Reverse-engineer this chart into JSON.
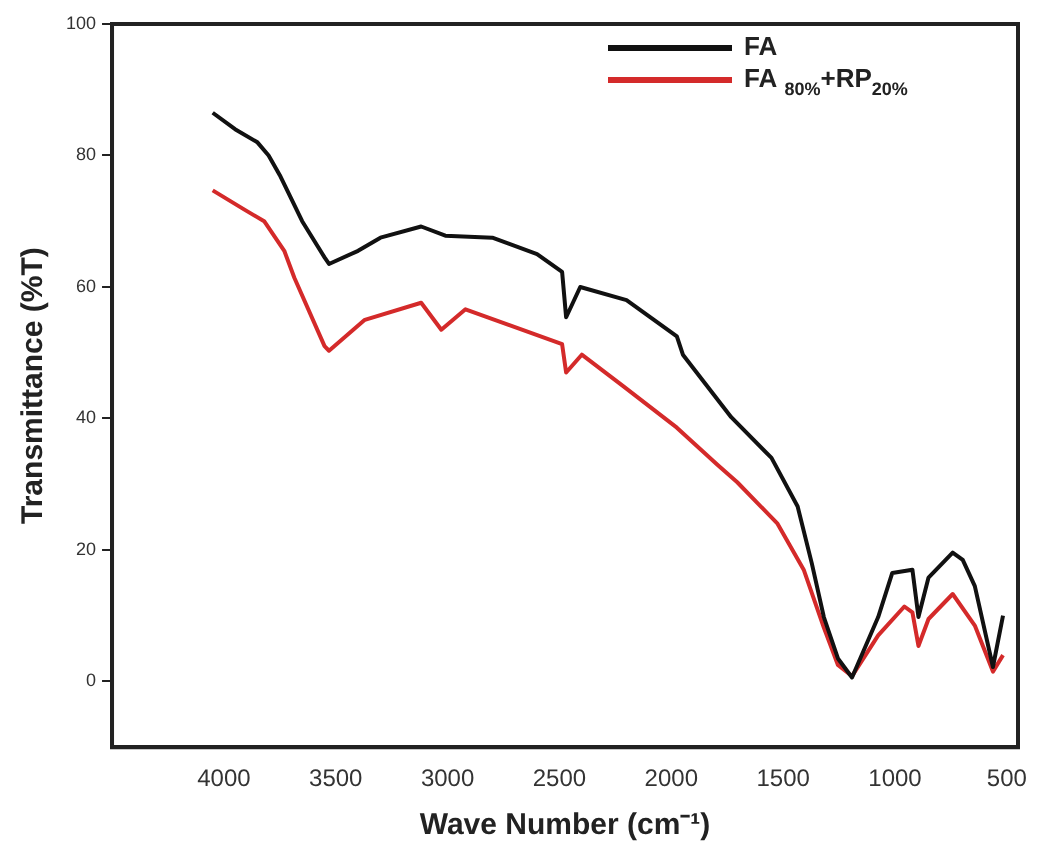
{
  "chart_data": {
    "type": "line",
    "xlabel": "Wave Number (cm⁻¹)",
    "ylabel": "Transmittance (%T)",
    "xlim": [
      4500,
      450
    ],
    "xticks": [
      4000,
      3500,
      3000,
      2500,
      2000,
      1500,
      1000,
      500
    ],
    "ylim": [
      -10,
      100
    ],
    "yticks": [
      0,
      20,
      40,
      60,
      80,
      100
    ],
    "grid": false,
    "legend": "top right",
    "marker": "none",
    "line_style": "solid",
    "series": [
      {
        "name": "FA",
        "color": "#111111",
        "x": [
          4050,
          3950,
          3850,
          3800,
          3750,
          3650,
          3550,
          3530,
          3400,
          3300,
          3118,
          3010,
          2800,
          2600,
          2488,
          2470,
          2407,
          2200,
          1975,
          1948,
          1732,
          1552,
          1435,
          1372,
          1318,
          1255,
          1192,
          1075,
          1012,
          922,
          895,
          850,
          742,
          697,
          643,
          562,
          517
        ],
        "values": [
          86.5,
          84,
          82,
          80,
          77,
          70,
          64.5,
          63.5,
          65.5,
          67.5,
          69.2,
          67.8,
          67.5,
          65,
          62.3,
          55.4,
          60,
          58,
          52.5,
          49.7,
          40.2,
          34,
          26.6,
          18,
          9.8,
          3.5,
          0.6,
          9.8,
          16.5,
          17,
          9.8,
          15.8,
          19.6,
          18.5,
          14.5,
          2.2,
          10
        ]
      },
      {
        "name": "FA $_{80%}$+RP$_{20%}$",
        "color": "#d42a2a",
        "x": [
          4050,
          3910,
          3820,
          3730,
          3685,
          3550,
          3530,
          3370,
          3118,
          3028,
          2920,
          2488,
          2470,
          2400,
          2218,
          1975,
          1795,
          1705,
          1525,
          1408,
          1318,
          1255,
          1192,
          1075,
          958,
          922,
          895,
          850,
          742,
          643,
          562,
          517
        ],
        "values": [
          74.7,
          71.8,
          70,
          65.5,
          61.4,
          51,
          50.3,
          55,
          57.6,
          53.5,
          56.6,
          51.3,
          47,
          49.7,
          45,
          38.6,
          33,
          30.3,
          24,
          17,
          8.2,
          2.5,
          0.8,
          7,
          11.4,
          10.5,
          5.4,
          9.5,
          13.3,
          8.5,
          1.5,
          4
        ]
      }
    ]
  }
}
